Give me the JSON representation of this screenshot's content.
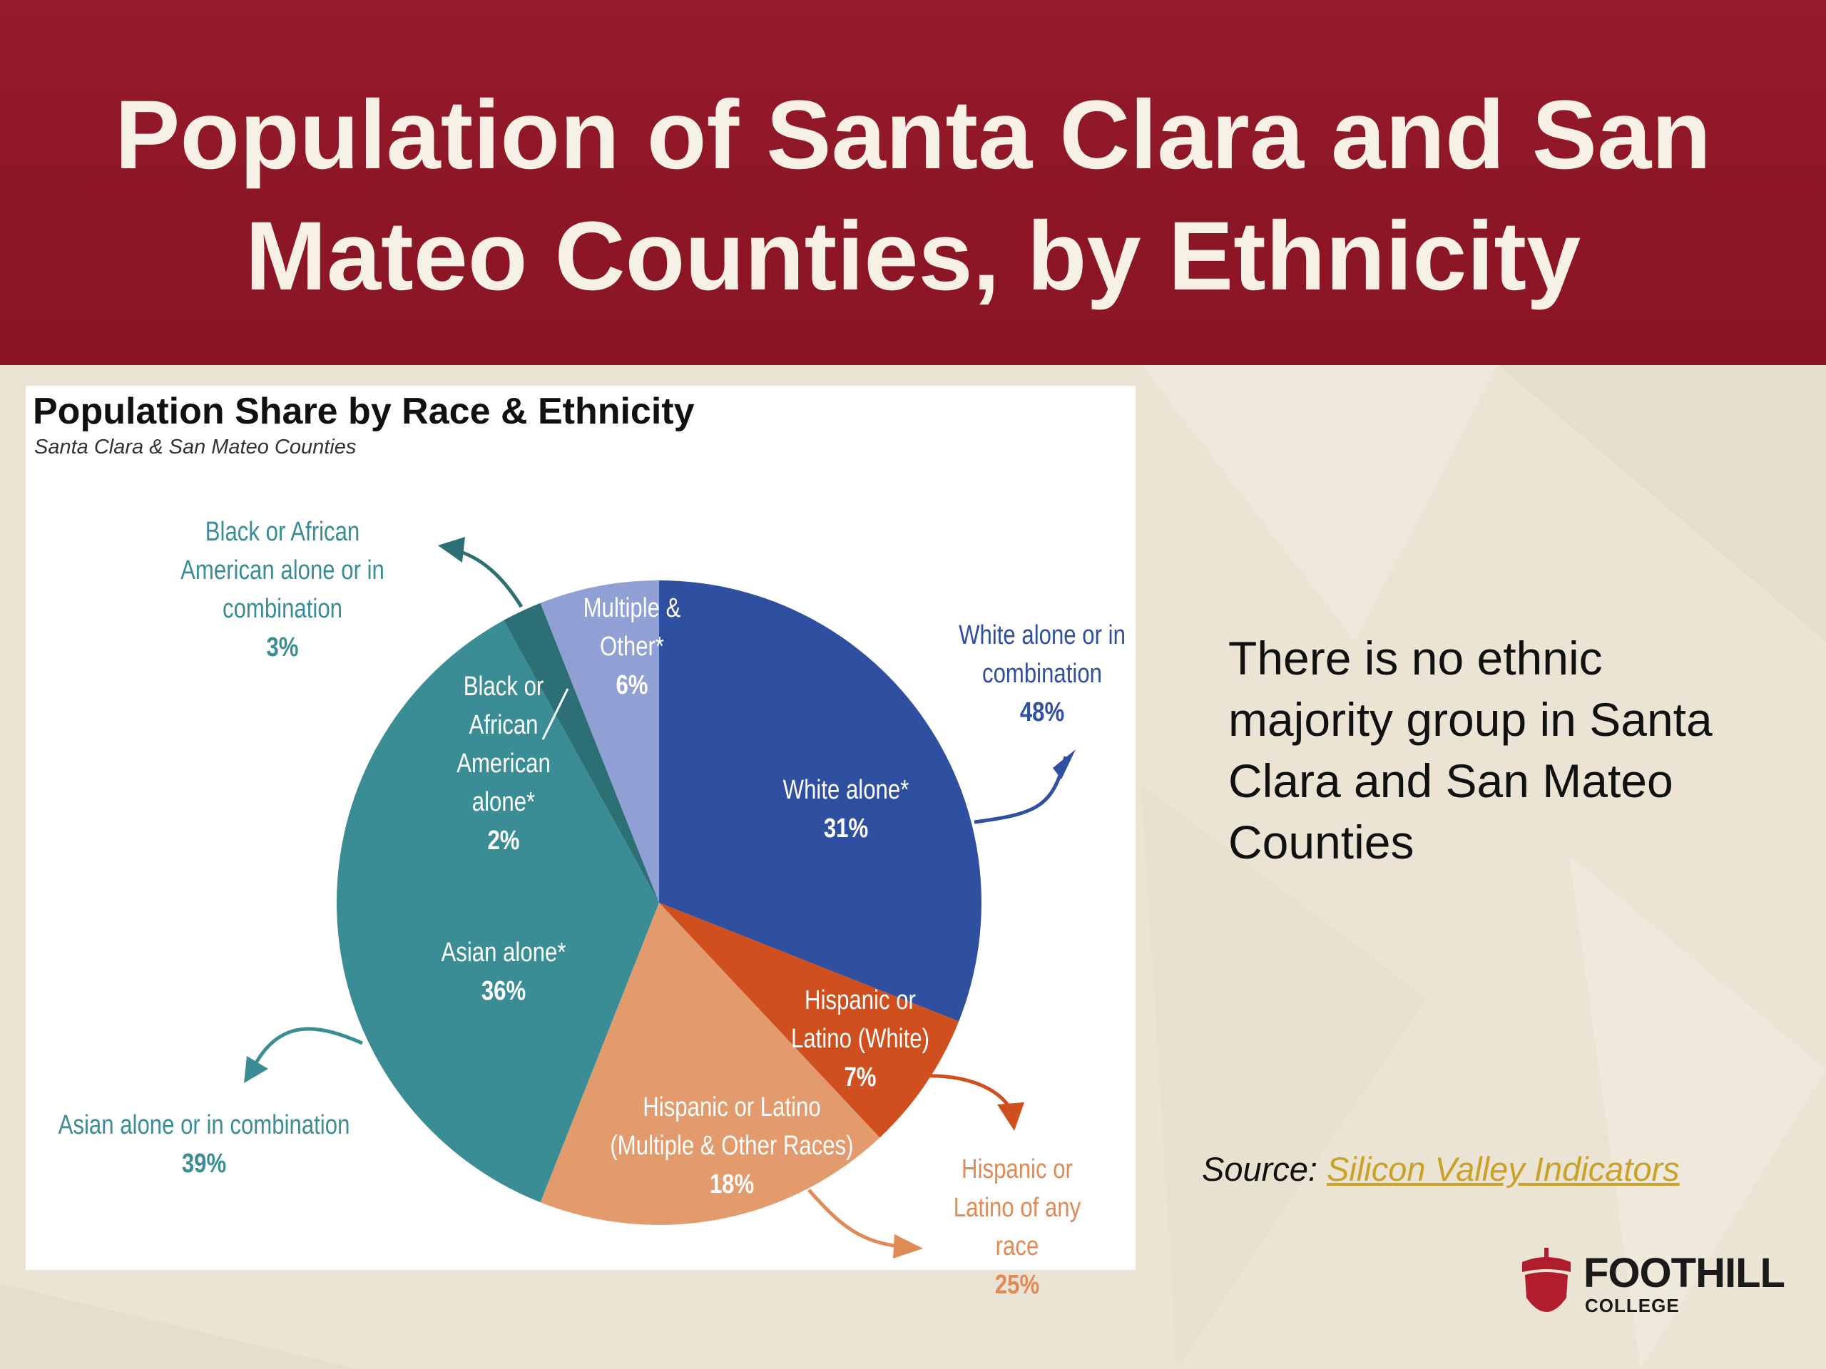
{
  "slide": {
    "title": "Population of Santa Clara and San Mateo Counties, by Ethnicity",
    "body_text": "There is no ethnic majority group in Santa Clara and San Mateo Counties",
    "source_label": "Source:",
    "source_link_text": "Silicon Valley Indicators",
    "logo_name": "FOOTHILL",
    "logo_sub": "COLLEGE"
  },
  "colors": {
    "header": "#8d1626",
    "white": "#2f4fa0",
    "hispanic_white": "#cf4f1f",
    "hispanic_other": "#e39a6c",
    "asian": "#3a8d94",
    "black": "#2c6f74",
    "multiple": "#909fd4",
    "accent_link": "#c9a227"
  },
  "chart_data": {
    "type": "pie",
    "title": "Population Share by Race & Ethnicity",
    "subtitle": "Santa Clara & San Mateo Counties",
    "slices": [
      {
        "key": "white",
        "label": "White alone*",
        "value": 31,
        "pct": "31%",
        "color": "#2f4fa0"
      },
      {
        "key": "hispanic_white",
        "label": "Hispanic or Latino (White)",
        "value": 7,
        "pct": "7%",
        "color": "#cf4f1f"
      },
      {
        "key": "hispanic_other",
        "label": "Hispanic or Latino (Multiple & Other Races)",
        "value": 18,
        "pct": "18%",
        "color": "#e39a6c"
      },
      {
        "key": "asian",
        "label": "Asian alone*",
        "value": 36,
        "pct": "36%",
        "color": "#3a8d94"
      },
      {
        "key": "black",
        "label": "Black or African American alone*",
        "value": 2,
        "pct": "2%",
        "color": "#2c6f74"
      },
      {
        "key": "multiple",
        "label": "Multiple & Other*",
        "value": 6,
        "pct": "6%",
        "color": "#909fd4"
      }
    ],
    "callouts": [
      {
        "key": "white_combo",
        "label": "White alone or in combination",
        "value": 48,
        "pct": "48%",
        "color": "#2f4fa0"
      },
      {
        "key": "hispanic_any",
        "label": "Hispanic or Latino of any race",
        "value": 25,
        "pct": "25%",
        "color": "#e08a55"
      },
      {
        "key": "asian_combo",
        "label": "Asian alone or in combination",
        "value": 39,
        "pct": "39%",
        "color": "#3a8d94"
      },
      {
        "key": "black_combo",
        "label": "Black or African American alone or in combination",
        "value": 3,
        "pct": "3%",
        "color": "#3a8d94"
      }
    ]
  }
}
